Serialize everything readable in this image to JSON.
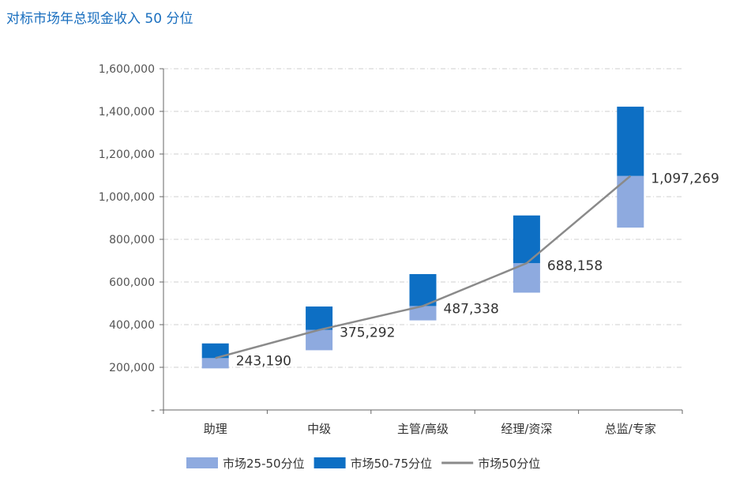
{
  "title": "对标市场年总现金收入 50 分位",
  "chart_data": {
    "type": "bar",
    "subtype": "floating-stacked-bar-with-line",
    "categories": [
      "助理",
      "中级",
      "主管/高级",
      "经理/资深",
      "总监/专家"
    ],
    "series": [
      {
        "name": "市场25-50分位",
        "low": [
          195000,
          280000,
          420000,
          550000,
          855000
        ],
        "high": [
          243190,
          375292,
          487338,
          688158,
          1097269
        ],
        "color": "#8eaadf"
      },
      {
        "name": "市场50-75分位",
        "low": [
          243190,
          375292,
          487338,
          688158,
          1097269
        ],
        "high": [
          312000,
          485000,
          637000,
          912000,
          1422000
        ],
        "color": "#0d6fc4"
      },
      {
        "name": "市场50分位",
        "type": "line",
        "values": [
          243190,
          375292,
          487338,
          688158,
          1097269
        ],
        "color": "#8a8a8a"
      }
    ],
    "data_labels": [
      "243,190",
      "375,292",
      "487,338",
      "688,158",
      "1,097,269"
    ],
    "y_ticks": [
      "-",
      "200,000",
      "400,000",
      "600,000",
      "800,000",
      "1,000,000",
      "1,200,000",
      "1,400,000",
      "1,600,000"
    ],
    "ylim": [
      0,
      1600000
    ],
    "y_step": 200000,
    "grid": true,
    "legend": [
      "市场25-50分位",
      "市场50-75分位",
      "市场50分位"
    ],
    "legend_position": "bottom"
  }
}
